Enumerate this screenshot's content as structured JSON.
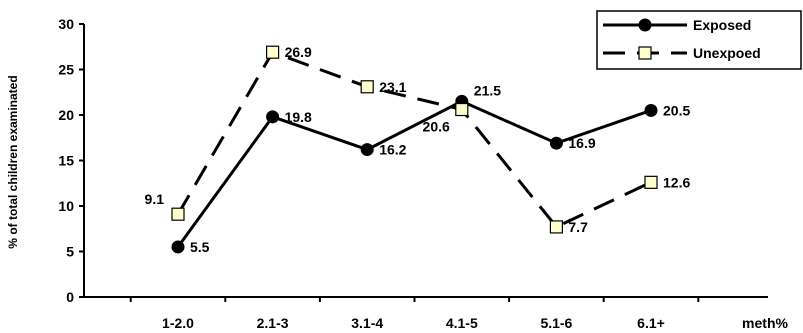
{
  "chart_data": {
    "type": "line",
    "title": "",
    "xlabel": "meth%",
    "ylabel": "% of total children examinated",
    "categories": [
      "1-2.0",
      "2.1-3",
      "3.1-4",
      "4.1-5",
      "5.1-6",
      "6.1+"
    ],
    "ylim": [
      0,
      30
    ],
    "yticks": [
      0,
      5,
      10,
      15,
      20,
      25,
      30
    ],
    "grid": false,
    "legend_position": "top-right",
    "series": [
      {
        "name": "Exposed",
        "values": [
          5.5,
          19.8,
          16.2,
          21.5,
          16.9,
          20.5
        ],
        "labels": [
          "5.5",
          "19.8",
          "16.2",
          "21.5",
          "16.9",
          "20.5"
        ],
        "line_style": "solid",
        "marker": "circle",
        "color": "#000000"
      },
      {
        "name": "Unexpoed",
        "values": [
          9.1,
          26.9,
          23.1,
          20.6,
          7.7,
          12.6
        ],
        "labels": [
          "9.1",
          "26.9",
          "23.1",
          "20.6",
          "7.7",
          "12.6"
        ],
        "line_style": "dashed",
        "marker": "square",
        "color": "#000000",
        "marker_fill": "#FFFFCC"
      }
    ]
  }
}
